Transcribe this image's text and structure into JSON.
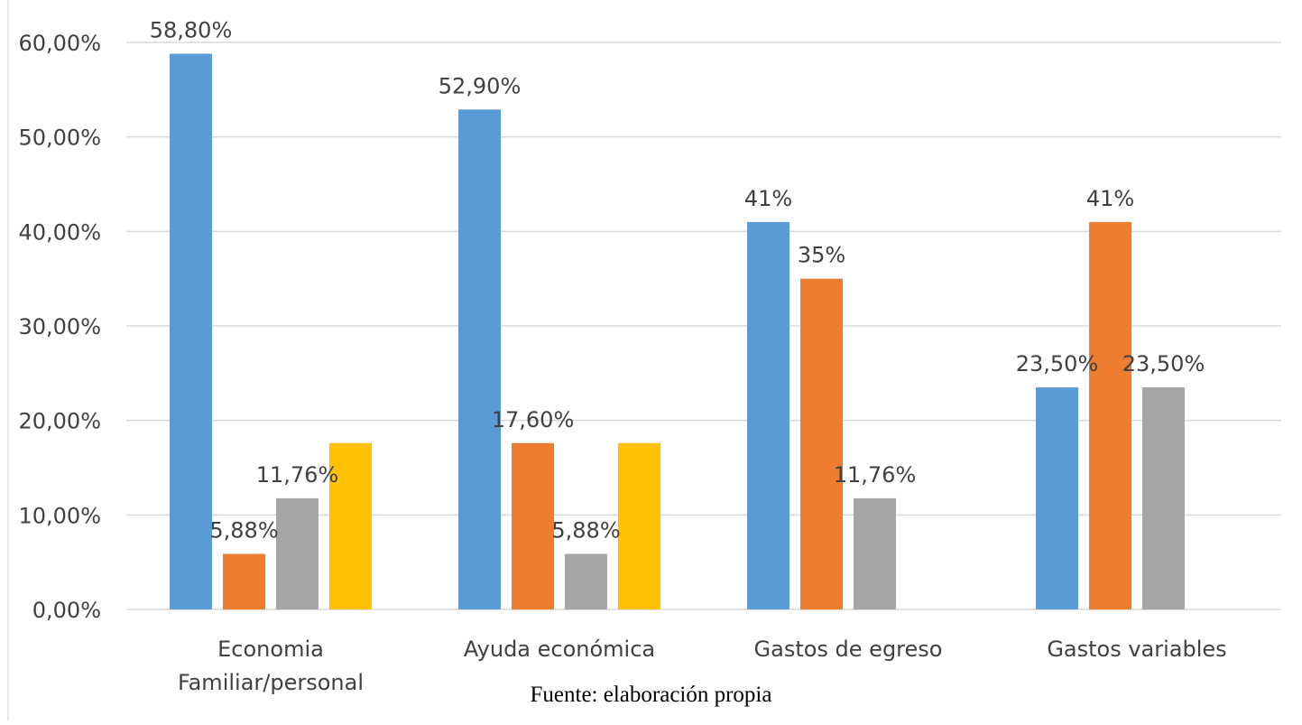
{
  "chart_data": {
    "type": "bar",
    "categories": [
      [
        "Economia",
        "Familiar/personal"
      ],
      [
        "Ayuda económica"
      ],
      [
        "Gastos de egreso"
      ],
      [
        "Gastos variables"
      ]
    ],
    "series": [
      {
        "values": [
          58.8,
          52.9,
          41,
          23.5
        ],
        "labels": [
          "58,80%",
          "52,90%",
          "41%",
          "23,50%"
        ],
        "color": "#5B9BD5"
      },
      {
        "values": [
          5.88,
          17.6,
          35,
          41
        ],
        "labels": [
          "5,88%",
          "17,60%",
          "35%",
          "41%"
        ],
        "color": "#ED7D31"
      },
      {
        "values": [
          11.76,
          5.88,
          11.76,
          23.5
        ],
        "labels": [
          "11,76%",
          "5,88%",
          "11,76%",
          "23,50%"
        ],
        "color": "#A5A5A5"
      },
      {
        "values": [
          17.6,
          17.6,
          null,
          null
        ],
        "labels": [
          "",
          "",
          "",
          ""
        ],
        "color": "#FFC000"
      }
    ],
    "y_ticks": [
      0,
      10,
      20,
      30,
      40,
      50,
      60
    ],
    "y_tick_labels": [
      "0,00%",
      "10,00%",
      "20,00%",
      "30,00%",
      "40,00%",
      "50,00%",
      "60,00%"
    ],
    "ylim": [
      0,
      60
    ],
    "grid": true,
    "legend": "none"
  },
  "source_note": "Fuente: elaboración propia"
}
